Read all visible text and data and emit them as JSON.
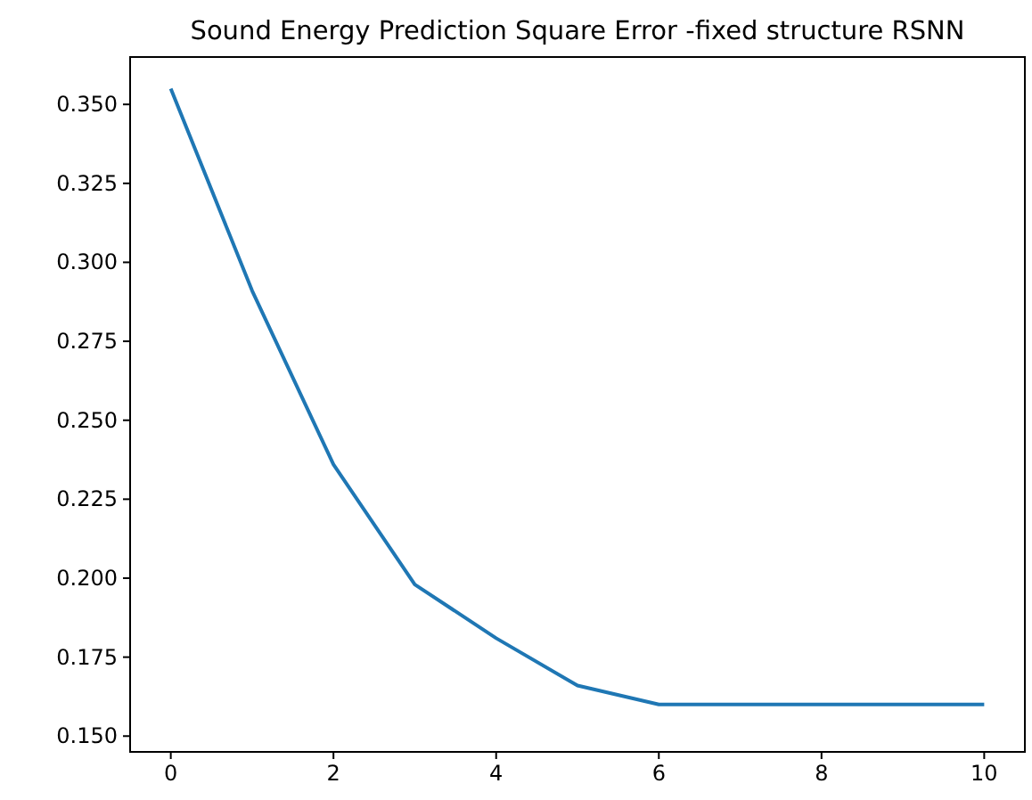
{
  "chart_data": {
    "type": "line",
    "title": "Sound Energy Prediction Square Error -fixed structure RSNN",
    "x": [
      0,
      1,
      2,
      3,
      4,
      5,
      6,
      7,
      8,
      9,
      10
    ],
    "series": [
      {
        "color": "#1f77b4",
        "values": [
          0.355,
          0.291,
          0.236,
          0.198,
          0.181,
          0.166,
          0.16,
          0.16,
          0.16,
          0.16,
          0.16
        ]
      }
    ],
    "xlim": [
      -0.5,
      10.5
    ],
    "xticks": [
      0,
      2,
      4,
      6,
      8,
      10
    ],
    "ylim": [
      0.145,
      0.365
    ],
    "yticks": [
      {
        "value": 0.15,
        "label": "0.150"
      },
      {
        "value": 0.175,
        "label": "0.175"
      },
      {
        "value": 0.2,
        "label": "0.200"
      },
      {
        "value": 0.225,
        "label": "0.225"
      },
      {
        "value": 0.25,
        "label": "0.250"
      },
      {
        "value": 0.275,
        "label": "0.275"
      },
      {
        "value": 0.3,
        "label": "0.300"
      },
      {
        "value": 0.325,
        "label": "0.325"
      },
      {
        "value": 0.35,
        "label": "0.350"
      }
    ],
    "grid": false
  }
}
